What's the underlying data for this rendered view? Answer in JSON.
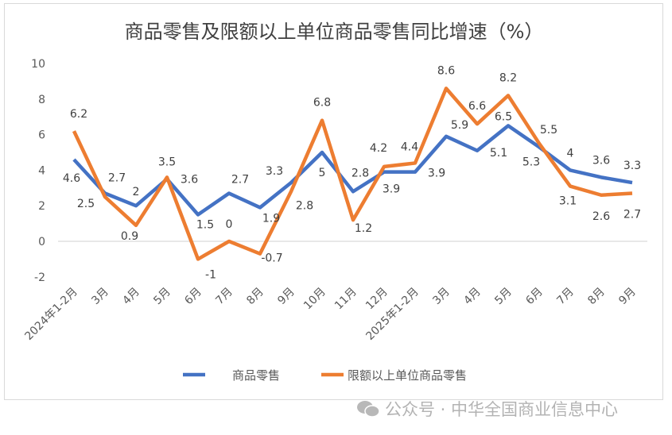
{
  "chart_data": {
    "type": "line",
    "title": "商品零售及限额以上单位商品零售同比增速（%）",
    "categories": [
      "2024年1-2月",
      "3月",
      "4月",
      "5月",
      "6月",
      "7月",
      "8月",
      "9月",
      "10月",
      "11月",
      "12月",
      "2025年1-2月",
      "3月",
      "4月",
      "5月",
      "6月",
      "7月",
      "8月",
      "9月"
    ],
    "series": [
      {
        "name": "商品零售",
        "color": "#4472C4",
        "values": [
          4.6,
          2.7,
          2,
          3.5,
          1.5,
          2.7,
          1.9,
          3.3,
          5,
          2.8,
          3.9,
          3.9,
          5.9,
          5.1,
          6.5,
          5.3,
          4,
          3.6,
          3.3
        ]
      },
      {
        "name": "限额以上单位商品零售",
        "color": "#ED7D31",
        "values": [
          6.2,
          2.5,
          0.9,
          3.6,
          -1,
          0,
          -0.7,
          2.8,
          6.8,
          1.2,
          4.2,
          4.4,
          8.6,
          6.6,
          8.2,
          5.5,
          3.1,
          2.6,
          2.7
        ]
      }
    ],
    "ylim": [
      -2,
      10
    ],
    "yticks": [
      -2,
      0,
      2,
      4,
      6,
      8,
      10
    ],
    "grid": false,
    "legend": "bottom",
    "xlabel": "",
    "ylabel": ""
  },
  "watermark": {
    "text": "公众号 · 中华全国商业信息中心",
    "icon": "wechat-icon"
  }
}
